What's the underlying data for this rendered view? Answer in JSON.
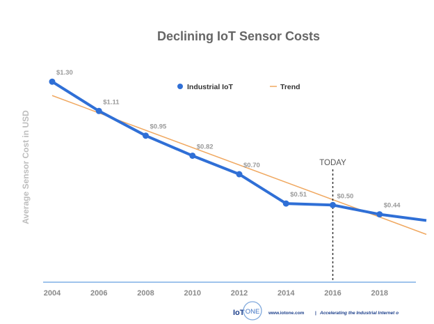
{
  "footer": {
    "logo_left": "IoT",
    "logo_right": "ONE",
    "url": "www.iotone.com",
    "separator": "|",
    "tagline": "Accelerating the Industrial Internet o"
  },
  "colors": {
    "series": "#2f6fd6",
    "trend": "#f0a860",
    "axis": "#9ec3ec",
    "title": "#666666"
  },
  "chart_data": {
    "type": "line",
    "title": "Declining IoT Sensor Costs",
    "xlabel": "",
    "ylabel": "Average Sensor Cost in USD",
    "xlim": [
      2004,
      2020
    ],
    "ylim": [
      0,
      1.45
    ],
    "x_ticks": [
      "2004",
      "2006",
      "2008",
      "2010",
      "2012",
      "2014",
      "2016",
      "2018"
    ],
    "grid": false,
    "legend_position": "top-center",
    "series": [
      {
        "name": "Industrial IoT",
        "x": [
          2004,
          2006,
          2008,
          2010,
          2012,
          2014,
          2016,
          2018,
          2020
        ],
        "y": [
          1.3,
          1.11,
          0.95,
          0.82,
          0.7,
          0.51,
          0.5,
          0.44,
          0.4
        ],
        "labels": [
          "$1.30",
          "$1.11",
          "$0.95",
          "$0.82",
          "$0.70",
          "$0.51",
          "$0.50",
          "$0.44",
          ""
        ]
      },
      {
        "name": "Trend",
        "x": [
          2004,
          2020
        ],
        "y": [
          1.21,
          0.31
        ]
      }
    ],
    "annotation": {
      "x": 2016,
      "label": "TODAY"
    }
  }
}
